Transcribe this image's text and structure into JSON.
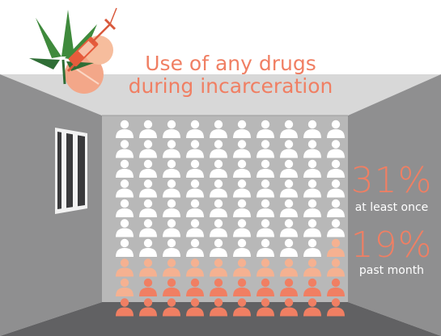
{
  "title_lines": [
    "Use of any drugs",
    "during incarceration"
  ],
  "stats": [
    {
      "value": "31%",
      "label": "at least once"
    },
    {
      "value": "19%",
      "label": "past month"
    }
  ],
  "colors": {
    "accent": "#f07f63",
    "accent_light": "#f5b191",
    "icon_default": "#ffffff",
    "leaf": "#3f8a3c",
    "leaf_dark": "#2f6e36",
    "back_wall": "#b8b8b8",
    "side_wall": "#8f8f90",
    "ceiling": "#d8d8d8",
    "floor": "#616163"
  },
  "icons": [
    "cannabis-leaf-icon",
    "syringe-icon",
    "pill-icon",
    "person-icon"
  ],
  "chart_data": {
    "type": "pictogram",
    "title": "Use of any drugs during incarceration",
    "total_icons": 100,
    "grid": {
      "rows": 10,
      "columns": 10
    },
    "series": [
      {
        "name": "at least once",
        "value": 31,
        "unit": "%",
        "color": "#f5b191"
      },
      {
        "name": "past month",
        "value": 19,
        "unit": "%",
        "color": "#f07f63"
      }
    ]
  }
}
